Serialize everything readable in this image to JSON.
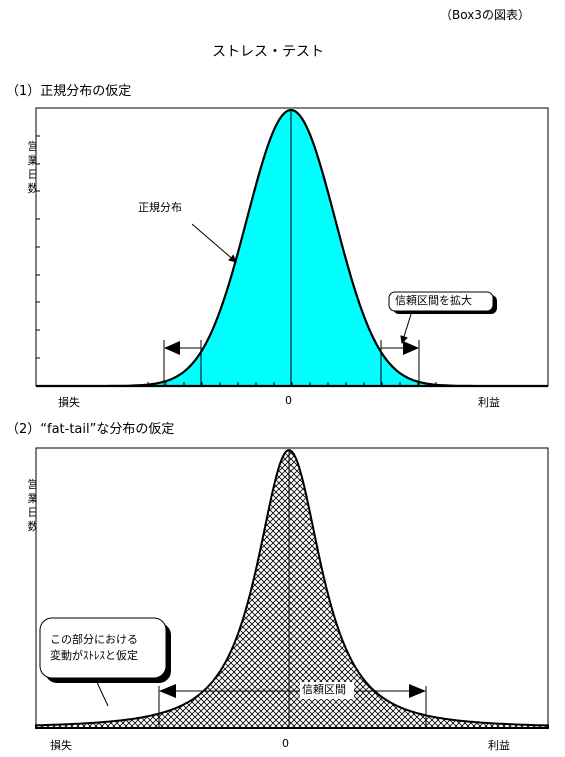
{
  "header": {
    "note": "（Box3の図表）",
    "title": "ストレス・テスト"
  },
  "section1": {
    "title": "（1）正規分布の仮定",
    "ylabel_chars": [
      "営",
      "業",
      "日",
      "数"
    ],
    "x_left": "損失",
    "x_zero": "0",
    "x_right": "利益",
    "curve_label": "正規分布",
    "callout": "信頼区間を拡大",
    "fill_color": "#00FFFF"
  },
  "section2": {
    "title": "（2）“fat-tail”な分布の仮定",
    "ylabel_chars": [
      "営",
      "業",
      "日",
      "数"
    ],
    "x_left": "損失",
    "x_zero": "0",
    "x_right": "利益",
    "callout_line1": "この部分における",
    "callout_line2": "変動がｽﾄﾚｽと仮定",
    "interval_label": "信頼区間"
  }
}
